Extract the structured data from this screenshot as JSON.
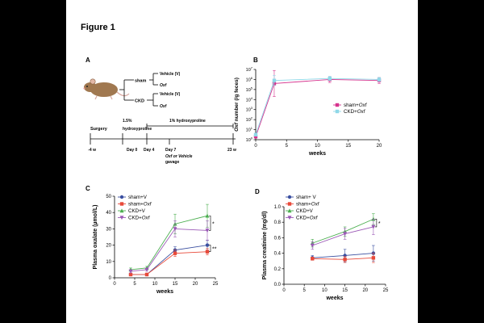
{
  "figure_title": "Figure 1",
  "panel_a": {
    "label": "A",
    "tree": {
      "sham": "sham",
      "ckd": "CKD",
      "vehicle": "Vehicle (V)",
      "oxf": "Oxf"
    },
    "timeline": {
      "surgery": "Surgery",
      "pre_treatment": "1.5% hydroxyproline",
      "post_treatment": "1% hydroxyproline",
      "ticks": [
        "-4 w",
        "Day 0",
        "Day 4",
        "Day 7",
        "23 w"
      ],
      "gavage_line1": "Oxf or Vehicle",
      "gavage_line2": "gavage"
    }
  },
  "chart_data": [
    {
      "panel": "B",
      "type": "line",
      "title": "",
      "xlabel": "weeks",
      "ylabel": "Oxf number (/g feces)",
      "y_scale": "log",
      "xlim": [
        0,
        20
      ],
      "ylim_log10": [
        0,
        7
      ],
      "x_ticks": [
        "0",
        "5",
        "10",
        "15",
        "20"
      ],
      "y_tick_exponents": [
        0,
        1,
        2,
        3,
        4,
        5,
        6,
        7
      ],
      "series": [
        {
          "name": "sham+Oxf",
          "color": "#d6338e",
          "x": [
            0,
            3,
            12,
            20
          ],
          "log10_values": [
            0.3,
            5.6,
            6.0,
            5.9
          ],
          "log10_err": [
            0.1,
            1.3,
            0.3,
            0.3
          ]
        },
        {
          "name": "CKD+Oxf",
          "color": "#8fd8e8",
          "x": [
            0,
            3,
            12,
            20
          ],
          "log10_values": [
            0.5,
            5.9,
            6.1,
            6.0
          ],
          "log10_err": [
            0.1,
            0.5,
            0.2,
            0.2
          ]
        }
      ]
    },
    {
      "panel": "C",
      "type": "line",
      "xlabel": "weeks",
      "ylabel": "Plasma oxalate (µmol/L)",
      "xlim": [
        0,
        25
      ],
      "ylim": [
        0,
        50
      ],
      "x_ticks": [
        "0",
        "5",
        "10",
        "15",
        "20",
        "25"
      ],
      "y_ticks": [
        "0",
        "10",
        "20",
        "30",
        "40",
        "50"
      ],
      "significance": [
        "*",
        "**"
      ],
      "series": [
        {
          "name": "sham+V",
          "color": "#3a4fa0",
          "x": [
            4,
            8,
            15,
            23
          ],
          "values": [
            2,
            2,
            17,
            20
          ],
          "err": [
            0.5,
            0.5,
            2,
            3
          ]
        },
        {
          "name": "sham+Oxf",
          "color": "#e84a3a",
          "x": [
            4,
            8,
            15,
            23
          ],
          "values": [
            2,
            2,
            15,
            16
          ],
          "err": [
            0.5,
            0.5,
            2,
            2
          ]
        },
        {
          "name": "CKD+V",
          "color": "#4caf50",
          "x": [
            4,
            8,
            15,
            23
          ],
          "values": [
            5,
            6,
            33,
            38
          ],
          "err": [
            1,
            1,
            6,
            7
          ]
        },
        {
          "name": "CKD+Oxf",
          "color": "#9b59b6",
          "x": [
            4,
            8,
            15,
            23
          ],
          "values": [
            4,
            5,
            30,
            29
          ],
          "err": [
            1,
            1,
            5,
            6
          ]
        }
      ]
    },
    {
      "panel": "D",
      "type": "line",
      "xlabel": "weeks",
      "ylabel": "Plasma creatinine (mg/dl)",
      "xlim": [
        0,
        25
      ],
      "ylim": [
        0,
        1.0
      ],
      "x_ticks": [
        "0",
        "5",
        "10",
        "15",
        "20",
        "25"
      ],
      "y_ticks": [
        "0.0",
        "0.2",
        "0.4",
        "0.6",
        "0.8",
        "1.0"
      ],
      "significance": [
        "*"
      ],
      "series": [
        {
          "name": "sham+ V",
          "color": "#3a4fa0",
          "x": [
            7,
            15,
            22
          ],
          "values": [
            0.34,
            0.37,
            0.4
          ],
          "err": [
            0.03,
            0.08,
            0.1
          ]
        },
        {
          "name": "sham+Oxf",
          "color": "#e84a3a",
          "x": [
            7,
            15,
            22
          ],
          "values": [
            0.33,
            0.32,
            0.34
          ],
          "err": [
            0.02,
            0.04,
            0.06
          ]
        },
        {
          "name": "CKD+V",
          "color": "#4caf50",
          "x": [
            7,
            15,
            22
          ],
          "values": [
            0.53,
            0.68,
            0.84
          ],
          "err": [
            0.05,
            0.06,
            0.07
          ]
        },
        {
          "name": "CKD+Oxf",
          "color": "#9b59b6",
          "x": [
            7,
            15,
            22
          ],
          "values": [
            0.5,
            0.65,
            0.74
          ],
          "err": [
            0.05,
            0.07,
            0.1
          ]
        }
      ]
    }
  ]
}
